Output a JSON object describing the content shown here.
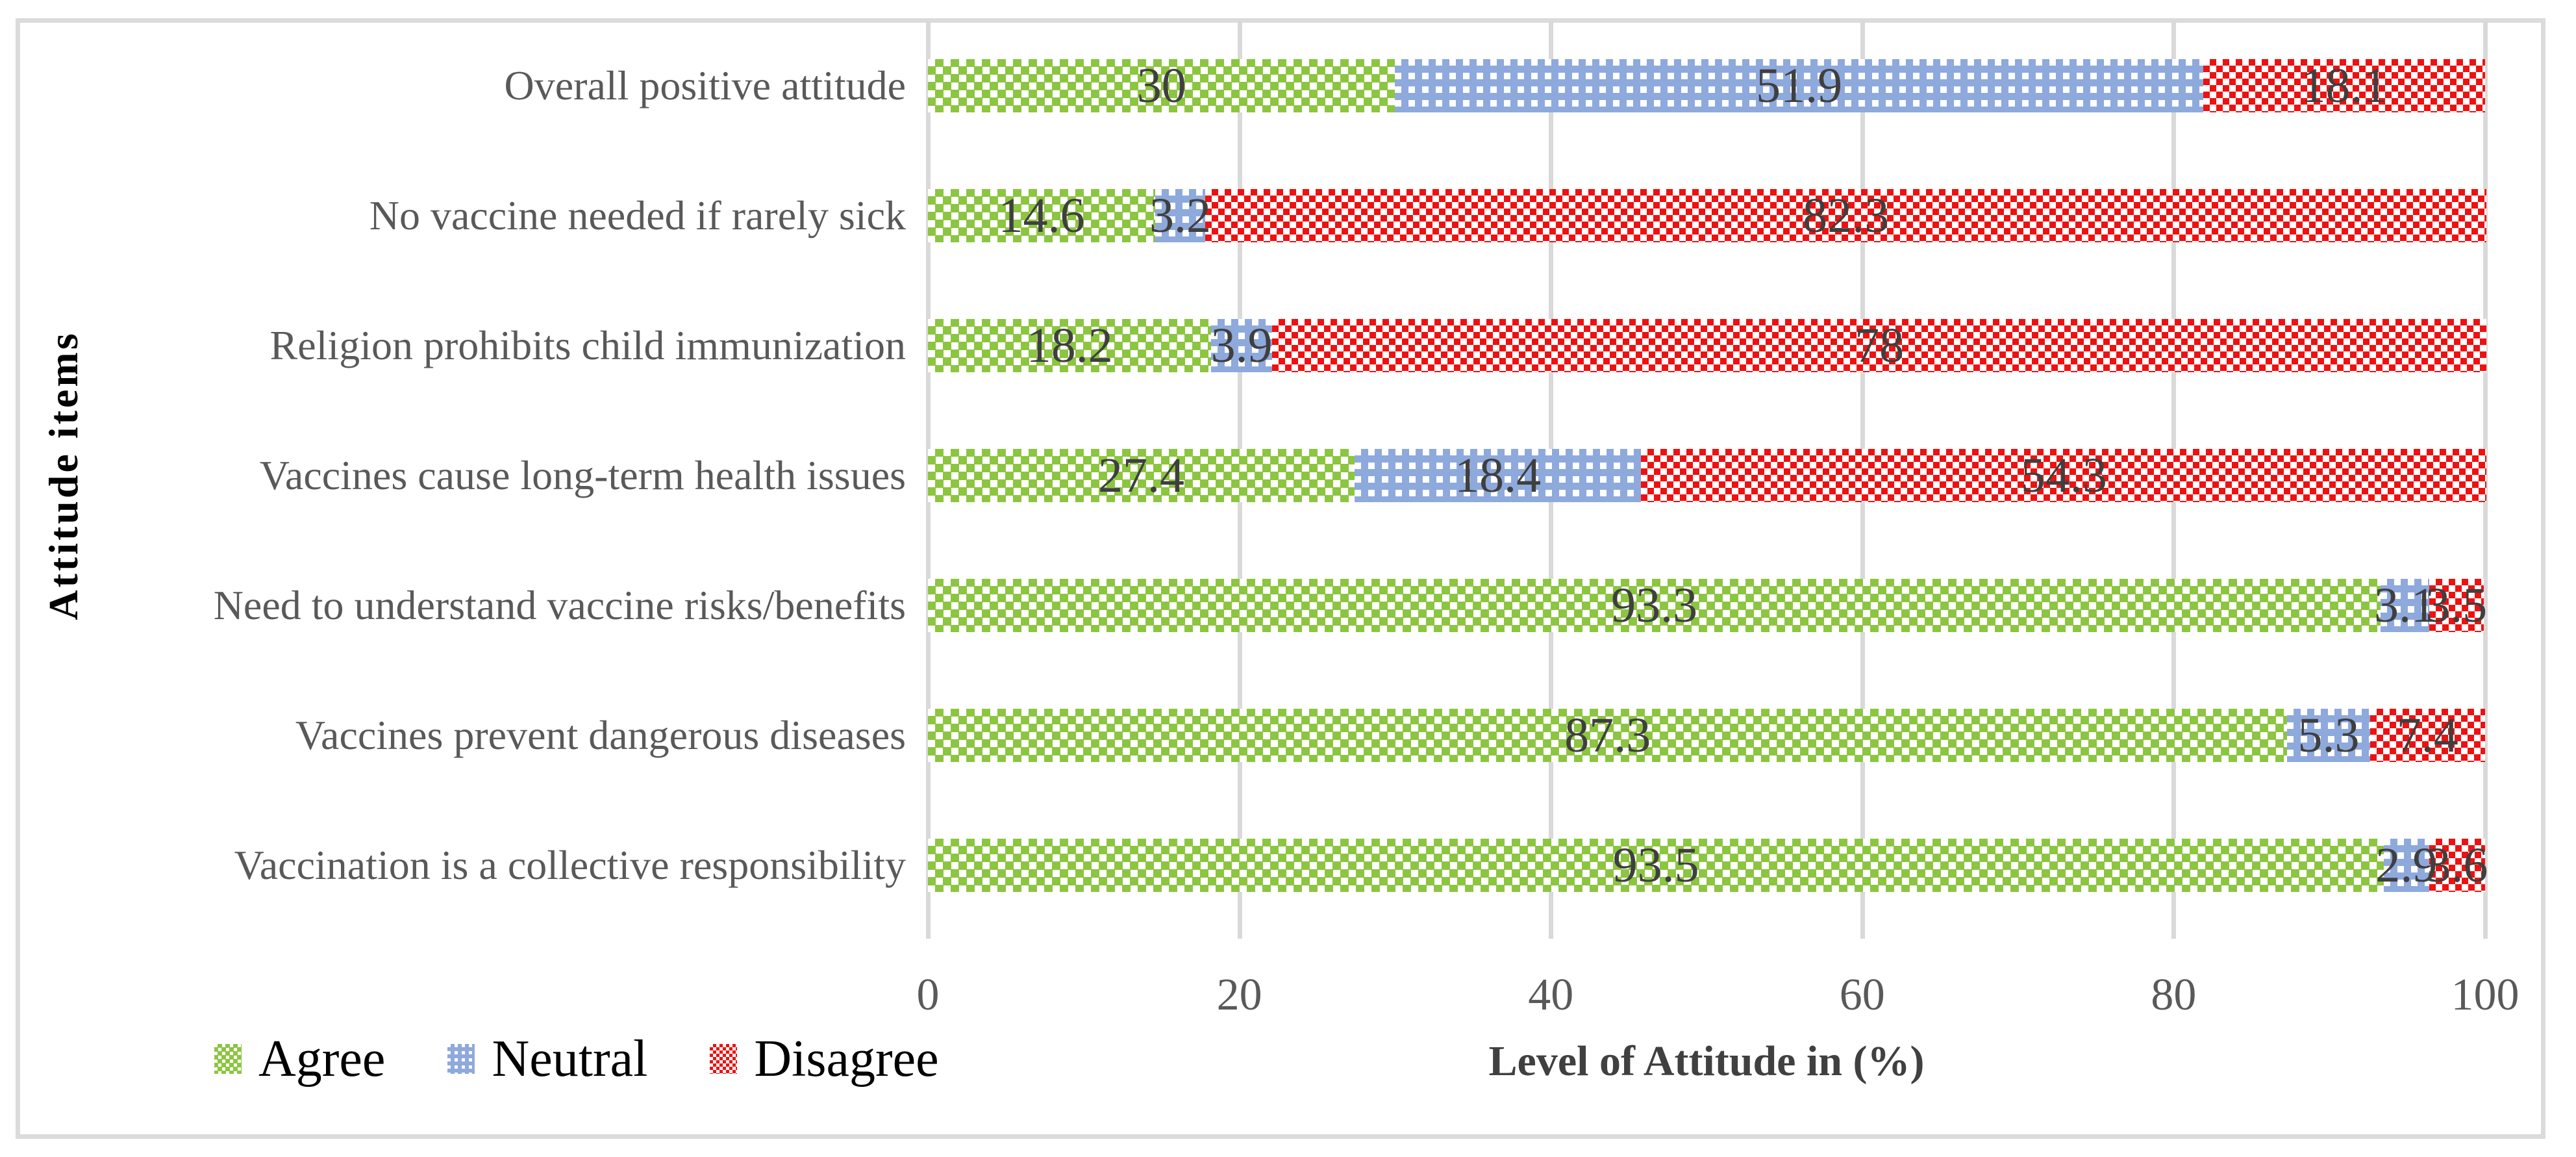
{
  "figure": {
    "background_color": "#FFFFFF",
    "border_color": "#DBDBDB"
  },
  "chart_data": {
    "type": "bar",
    "orientation": "horizontal",
    "stacked": true,
    "title": "",
    "xlabel": "Level of Attitude in (%)",
    "ylabel": "Attitude items",
    "xlim": [
      0,
      100
    ],
    "xticks": [
      "0",
      "20",
      "40",
      "60",
      "80",
      "100"
    ],
    "grid": "vertical",
    "gridline_color": "#D9D9D9",
    "axis_text_color": "#595959",
    "value_label_color": "#3F3F3F",
    "legend_position": "bottom-left",
    "categories": [
      "Overall positive attitude",
      "No vaccine needed if rarely sick",
      "Religion prohibits child immunization",
      "Vaccines cause long-term health issues",
      "Need to understand vaccine risks/benefits",
      "Vaccines prevent dangerous diseases",
      "Vaccination is a collective responsibility"
    ],
    "series": [
      {
        "name": "Agree",
        "color": "#8CC540",
        "pattern": "diagonal-white-dots",
        "values": [
          30,
          14.6,
          18.2,
          27.4,
          93.3,
          87.3,
          93.5
        ],
        "labels": [
          "30",
          "14.6",
          "18.2",
          "27.4",
          "93.3",
          "87.3",
          "93.5"
        ]
      },
      {
        "name": "Neutral",
        "color": "#8EA9DC",
        "pattern": "grid-white-dots",
        "values": [
          51.9,
          3.2,
          3.9,
          18.4,
          3.1,
          5.3,
          2.9
        ],
        "labels": [
          "51.9",
          "3.2",
          "3.9",
          "18.4",
          "3.1",
          "5.3",
          "2.9"
        ]
      },
      {
        "name": "Disagree",
        "color": "#EE1111",
        "pattern": "checkerboard",
        "values": [
          18.1,
          82.3,
          78,
          54.3,
          3.5,
          7.4,
          3.6
        ],
        "labels": [
          "18.1",
          "82.3",
          "78",
          "54.3",
          "3.5",
          "7.4",
          "3.6"
        ]
      }
    ]
  }
}
